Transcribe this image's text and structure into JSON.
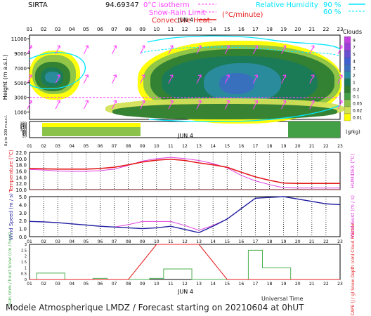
{
  "header": {
    "site": "SIRTA",
    "site_value": "94.69347",
    "isotherm_label": "0°C isotherm",
    "snow_rain_label": "Snow-Rain Limit",
    "convective_label": "Convective Heat.",
    "convective_unit": "(°C/minute)",
    "rh_label": "Relative Humidity",
    "rh_levels": [
      "90 %",
      "60 %"
    ],
    "date_label": "JUN  4"
  },
  "footer": {
    "title": "Modele Atmospherique LMDZ / Forecast starting on 20210604 at 0hUT",
    "time_label": "Universal Time"
  },
  "colors": {
    "t_line": "#e41a1c",
    "humidex_line": "#e040e0",
    "wind_line": "#1f1fa0",
    "gust_line": "#e040e0",
    "rain": "#4caf50",
    "cape": "#e41a1c",
    "isotherm": "#ff40ff",
    "rh": "#00e5ff"
  },
  "chart_data": [
    {
      "type": "heatmap",
      "name": "clouds",
      "xlabel": "",
      "x_ticks": [
        "01",
        "02",
        "03",
        "04",
        "05",
        "06",
        "07",
        "08",
        "09",
        "10",
        "11",
        "12",
        "13",
        "14",
        "15",
        "16",
        "17",
        "18",
        "19",
        "20",
        "21",
        "22",
        "23"
      ],
      "ylabel": "Height (m a.s.l.)",
      "y_ticks_upper": [
        11000,
        9000,
        7000,
        5000,
        3000,
        1000
      ],
      "y_ticks_lower_label": "Up to 200 m a.s.l.",
      "y_ticks_lower": [
        180,
        160,
        140,
        120,
        100,
        80,
        60,
        40,
        20
      ],
      "colorbar_title": "Clouds",
      "colorbar_unit": "(g/kg)",
      "colorbar_levels": [
        "0.01",
        "0.02",
        "0.05",
        "0.1",
        "0.2",
        "1",
        "2",
        "3",
        "4",
        "5",
        "7",
        "9"
      ],
      "colorbar_colors": [
        "#ffff00",
        "#d4e157",
        "#8bc34a",
        "#43a047",
        "#2e7d32",
        "#1b7a5a",
        "#2a8ca0",
        "#3a6fc0",
        "#4060d0",
        "#6a4fd0",
        "#9a3fd8",
        "#c040e0"
      ],
      "isotherm_m": [
        3000,
        3000,
        3000,
        3000,
        3000,
        3000,
        3000,
        3000,
        3000,
        3000,
        3000,
        3000,
        3000,
        3000,
        3000,
        3000,
        3000,
        3000,
        3000,
        3000,
        3000,
        3000,
        3000
      ]
    },
    {
      "type": "line",
      "name": "temperature",
      "ylabel": "Temperature (°C)",
      "ylabel_right": "HUMIDEX (°C)",
      "ylim": [
        10.0,
        22.0
      ],
      "y_ticks": [
        "22.0",
        "20.0",
        "18.0",
        "16.0",
        "14.0",
        "12.0",
        "10.0"
      ],
      "x": [
        "01",
        "02",
        "03",
        "04",
        "05",
        "06",
        "07",
        "08",
        "09",
        "10",
        "11",
        "12",
        "13",
        "14",
        "15",
        "16",
        "17",
        "18",
        "19",
        "20",
        "21",
        "22",
        "23"
      ],
      "series": [
        {
          "name": "Temperature",
          "values": [
            16.8,
            16.7,
            16.6,
            16.6,
            16.6,
            16.8,
            17.2,
            18.0,
            18.9,
            19.5,
            19.8,
            19.4,
            18.6,
            18.0,
            17.2,
            15.6,
            14.1,
            13.0,
            12.1,
            12.0,
            12.0,
            12.0,
            12.0
          ]
        },
        {
          "name": "HUMIDEX",
          "values": [
            16.5,
            16.3,
            16.0,
            15.9,
            15.9,
            16.1,
            16.6,
            17.8,
            19.2,
            20.0,
            20.4,
            20.0,
            19.4,
            18.4,
            17.0,
            14.6,
            12.8,
            11.6,
            10.6,
            10.5,
            10.5,
            10.5,
            10.5
          ]
        }
      ]
    },
    {
      "type": "line",
      "name": "wind",
      "ylabel": "Wind Speed (m / s)",
      "ylabel_right": "Wind Gust (m / s)",
      "ylim": [
        0.0,
        5.0
      ],
      "y_ticks": [
        "5.0",
        "4.0",
        "3.0",
        "2.0",
        "1.0",
        "0.0"
      ],
      "x": [
        "01",
        "02",
        "03",
        "04",
        "05",
        "06",
        "07",
        "08",
        "09",
        "10",
        "11",
        "12",
        "13",
        "14",
        "15",
        "16",
        "17",
        "18",
        "19",
        "20",
        "21",
        "22",
        "23"
      ],
      "series": [
        {
          "name": "Wind Speed",
          "values": [
            1.9,
            1.85,
            1.75,
            1.6,
            1.45,
            1.3,
            1.2,
            1.1,
            1.0,
            1.1,
            1.3,
            0.9,
            0.5,
            1.3,
            2.2,
            3.5,
            4.8,
            4.9,
            5.0,
            4.7,
            4.4,
            4.1,
            4.0
          ]
        },
        {
          "name": "Wind Gust",
          "values": [
            1.9,
            1.85,
            1.75,
            1.6,
            1.45,
            1.3,
            1.2,
            1.5,
            1.9,
            1.9,
            1.9,
            1.4,
            0.8,
            1.4,
            2.2,
            3.5,
            4.8,
            4.9,
            5.0,
            4.7,
            4.4,
            4.1,
            4.0
          ]
        }
      ]
    },
    {
      "type": "bar",
      "name": "precipitation",
      "ylabel": "Rain (mm / hour) Snow (cm / hour)",
      "ylabel_right": "CAPE (J / g) Snow Depth (cm) Cloud Fraction",
      "y_ticks": [
        "3",
        "2.5",
        "2",
        "1.5",
        "1",
        "0.5",
        "0"
      ],
      "ylim": [
        0,
        3
      ],
      "x": [
        "01",
        "02",
        "03",
        "04",
        "05",
        "06",
        "07",
        "08",
        "09",
        "10",
        "11",
        "12",
        "13",
        "14",
        "15",
        "16",
        "17",
        "18",
        "19",
        "20",
        "21",
        "22",
        "23"
      ],
      "series": [
        {
          "name": "Rain",
          "values": [
            0,
            0.55,
            0.55,
            0,
            0,
            0.1,
            0,
            0,
            0,
            0.1,
            0.9,
            0.9,
            0,
            0,
            0,
            0,
            2.5,
            1.0,
            1.0,
            0,
            0,
            0,
            0
          ]
        },
        {
          "name": "CAPE",
          "values": [
            0,
            0,
            0,
            0,
            0,
            0,
            0,
            0,
            1.5,
            3,
            3,
            3,
            3,
            1.5,
            0,
            0,
            0,
            0,
            0,
            0,
            0,
            0,
            0
          ]
        }
      ]
    }
  ]
}
